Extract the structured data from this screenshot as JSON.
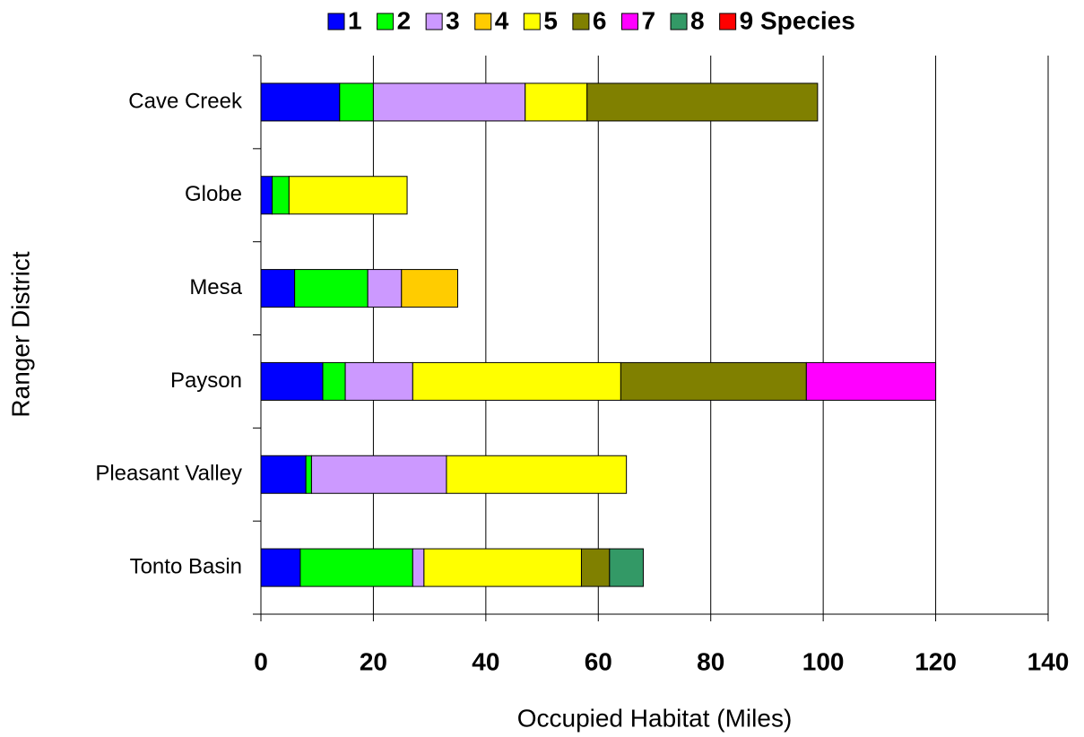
{
  "chart_data": {
    "type": "stacked-horizontal-bar",
    "x_label": "Occupied Habitat (Miles)",
    "y_label": "Ranger District",
    "categories": [
      "Cave Creek",
      "Globe",
      "Mesa",
      "Payson",
      "Pleasant Valley",
      "Tonto Basin"
    ],
    "series": [
      {
        "name": "1",
        "color": "#0000ff",
        "values": [
          14,
          2,
          6,
          11,
          8,
          7
        ]
      },
      {
        "name": "2",
        "color": "#00ff00",
        "values": [
          6,
          3,
          13,
          4,
          1,
          20
        ]
      },
      {
        "name": "3",
        "color": "#cc99ff",
        "values": [
          27,
          null,
          6,
          12,
          24,
          2
        ]
      },
      {
        "name": "4",
        "color": "#ffcc00",
        "values": [
          null,
          null,
          10,
          null,
          null,
          null
        ]
      },
      {
        "name": "5",
        "color": "#ffff00",
        "values": [
          11,
          21,
          null,
          37,
          32,
          28
        ]
      },
      {
        "name": "6",
        "color": "#808000",
        "values": [
          41,
          null,
          null,
          33,
          null,
          5
        ]
      },
      {
        "name": "7",
        "color": "#ff00ff",
        "values": [
          null,
          null,
          null,
          23,
          null,
          null
        ]
      },
      {
        "name": "8",
        "color": "#339966",
        "values": [
          null,
          null,
          null,
          null,
          null,
          6
        ]
      },
      {
        "name": "9 Species",
        "color": "#ff0000",
        "values": [
          null,
          null,
          null,
          null,
          null,
          null
        ]
      }
    ],
    "xlim": [
      0,
      140
    ],
    "xticks": [
      0,
      20,
      40,
      60,
      80,
      100,
      120,
      140
    ],
    "grid": true,
    "legend": "top"
  }
}
